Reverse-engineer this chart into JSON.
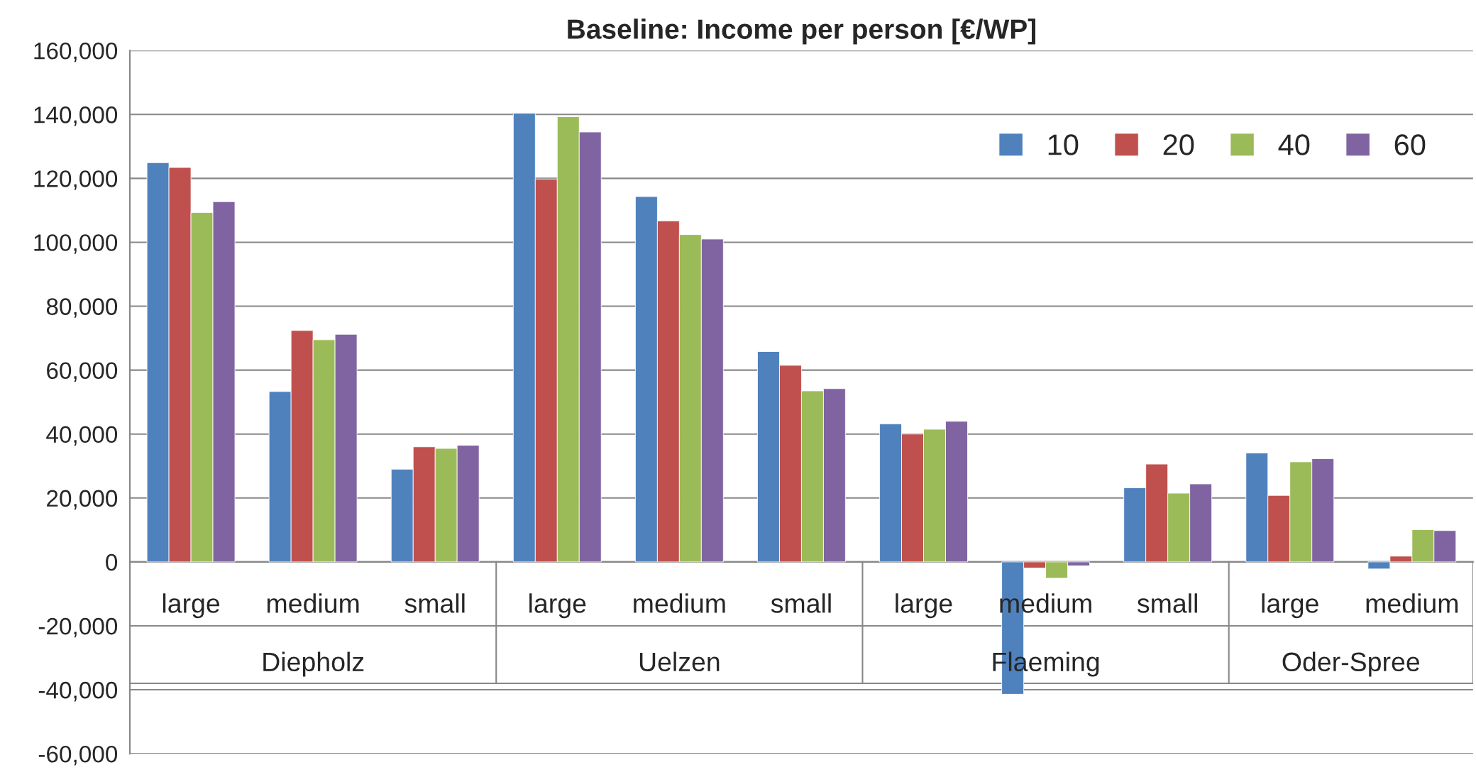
{
  "chart_data": {
    "type": "bar",
    "title": "Baseline: Income per person [€/WP]",
    "categories": [
      "large",
      "medium",
      "small",
      "large",
      "medium",
      "small",
      "large",
      "medium",
      "small",
      "large",
      "medium"
    ],
    "annotations": [
      "Diepholz",
      "Uelzen",
      "Flaeming",
      "Oder-Spree"
    ],
    "series": [
      {
        "name": "10",
        "color": "#4f81bd",
        "values": [
          124900,
          53300,
          29000,
          140400,
          114300,
          65800,
          43200,
          -41400,
          23200,
          34100,
          -2200
        ]
      },
      {
        "name": "20",
        "color": "#c0504d",
        "values": [
          123400,
          72400,
          36000,
          119800,
          106700,
          61500,
          40000,
          -1900,
          30600,
          20800,
          1800
        ]
      },
      {
        "name": "40",
        "color": "#9bbb59",
        "values": [
          109300,
          69500,
          35500,
          139300,
          102400,
          53500,
          41500,
          -5100,
          21500,
          31300,
          10100
        ]
      },
      {
        "name": "60",
        "color": "#8064a2",
        "values": [
          112700,
          71200,
          36500,
          134500,
          101000,
          54200,
          44000,
          -1200,
          24400,
          32300,
          9800
        ]
      }
    ],
    "ylim": [
      -60000,
      160000
    ],
    "yticks": [
      {
        "value": -60000,
        "label": "-60,000"
      },
      {
        "value": -40000,
        "label": "-40,000"
      },
      {
        "value": -20000,
        "label": "-20,000"
      },
      {
        "value": 0,
        "label": "0"
      },
      {
        "value": 20000,
        "label": "20,000"
      },
      {
        "value": 40000,
        "label": "40,000"
      },
      {
        "value": 60000,
        "label": "60,000"
      },
      {
        "value": 80000,
        "label": "80,000"
      },
      {
        "value": 100000,
        "label": "100,000"
      },
      {
        "value": 120000,
        "label": "120,000"
      },
      {
        "value": 140000,
        "label": "140,000"
      },
      {
        "value": 160000,
        "label": "160,000"
      }
    ],
    "grid": "y",
    "legend": "top right"
  }
}
